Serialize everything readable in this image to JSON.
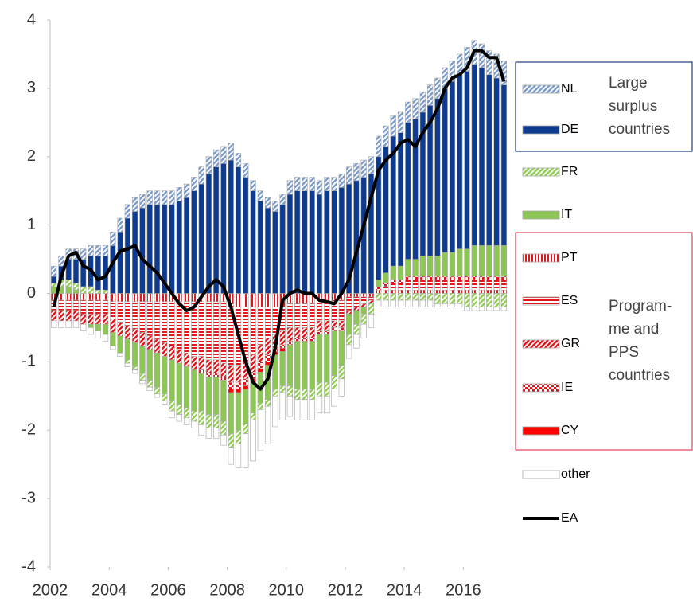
{
  "chart_data": {
    "type": "bar",
    "x": [
      2002,
      2002.25,
      2002.5,
      2002.75,
      2003,
      2003.25,
      2003.5,
      2003.75,
      2004,
      2004.25,
      2004.5,
      2004.75,
      2005,
      2005.25,
      2005.5,
      2005.75,
      2006,
      2006.25,
      2006.5,
      2006.75,
      2007,
      2007.25,
      2007.5,
      2007.75,
      2008,
      2008.25,
      2008.5,
      2008.75,
      2009,
      2009.25,
      2009.5,
      2009.75,
      2010,
      2010.25,
      2010.5,
      2010.75,
      2011,
      2011.25,
      2011.5,
      2011.75,
      2012,
      2012.25,
      2012.5,
      2012.75,
      2013,
      2013.25,
      2013.5,
      2013.75,
      2014,
      2014.25,
      2014.5,
      2014.75,
      2015,
      2015.25,
      2015.5,
      2015.75,
      2016,
      2016.25,
      2016.5,
      2016.75,
      2017,
      2017.25
    ],
    "xlim": [
      2002,
      2017.5
    ],
    "xticks": [
      2002,
      2004,
      2006,
      2008,
      2010,
      2012,
      2014,
      2016
    ],
    "ylim": [
      -4,
      4
    ],
    "yticks": [
      -4,
      -3,
      -2,
      -1,
      0,
      1,
      2,
      3,
      4
    ],
    "series": [
      {
        "name": "NL",
        "color": "#7c9ccc",
        "pattern": "diagonal",
        "values": [
          0.15,
          0.15,
          0.15,
          0.15,
          0.15,
          0.15,
          0.15,
          0.15,
          0.2,
          0.2,
          0.2,
          0.2,
          0.2,
          0.2,
          0.2,
          0.2,
          0.2,
          0.2,
          0.2,
          0.2,
          0.25,
          0.25,
          0.25,
          0.25,
          0.25,
          0.2,
          0.2,
          0.15,
          0.15,
          0.15,
          0.15,
          0.15,
          0.2,
          0.2,
          0.2,
          0.2,
          0.2,
          0.2,
          0.2,
          0.2,
          0.25,
          0.25,
          0.25,
          0.25,
          0.3,
          0.3,
          0.3,
          0.3,
          0.3,
          0.3,
          0.3,
          0.3,
          0.3,
          0.3,
          0.3,
          0.3,
          0.35,
          0.35,
          0.35,
          0.35,
          0.35,
          0.35
        ]
      },
      {
        "name": "DE",
        "color": "#0d3b8f",
        "pattern": "solid",
        "values": [
          0.1,
          0.2,
          0.3,
          0.35,
          0.4,
          0.45,
          0.5,
          0.5,
          0.7,
          0.9,
          1.1,
          1.2,
          1.25,
          1.3,
          1.3,
          1.3,
          1.3,
          1.35,
          1.4,
          1.5,
          1.6,
          1.75,
          1.85,
          1.9,
          1.95,
          1.85,
          1.7,
          1.5,
          1.35,
          1.25,
          1.2,
          1.3,
          1.45,
          1.5,
          1.5,
          1.5,
          1.45,
          1.5,
          1.5,
          1.55,
          1.6,
          1.65,
          1.7,
          1.75,
          1.8,
          1.85,
          1.9,
          1.95,
          2.0,
          2.05,
          2.1,
          2.2,
          2.3,
          2.4,
          2.5,
          2.55,
          2.6,
          2.65,
          2.6,
          2.5,
          2.45,
          2.35
        ]
      },
      {
        "name": "FR",
        "color": "#92d050",
        "pattern": "diagonal",
        "values": [
          0.05,
          0.1,
          0.1,
          0.1,
          0.1,
          0.1,
          0.05,
          0.05,
          0,
          0,
          -0.05,
          -0.05,
          -0.1,
          -0.1,
          -0.1,
          -0.1,
          -0.15,
          -0.15,
          -0.15,
          -0.15,
          -0.2,
          -0.2,
          -0.2,
          -0.2,
          -0.2,
          -0.2,
          -0.15,
          -0.1,
          -0.1,
          -0.1,
          -0.1,
          -0.1,
          -0.15,
          -0.15,
          -0.15,
          -0.15,
          -0.2,
          -0.2,
          -0.2,
          -0.2,
          -0.15,
          -0.15,
          -0.15,
          -0.15,
          -0.1,
          -0.1,
          -0.1,
          -0.1,
          -0.1,
          -0.1,
          -0.1,
          -0.1,
          -0.15,
          -0.15,
          -0.15,
          -0.15,
          -0.2,
          -0.2,
          -0.2,
          -0.2,
          -0.2,
          -0.2
        ]
      },
      {
        "name": "IT",
        "color": "#8cc653",
        "pattern": "solid",
        "values": [
          0.1,
          0.1,
          0.1,
          0.05,
          0,
          -0.05,
          -0.1,
          -0.15,
          -0.2,
          -0.25,
          -0.3,
          -0.35,
          -0.4,
          -0.45,
          -0.5,
          -0.55,
          -0.6,
          -0.6,
          -0.6,
          -0.6,
          -0.55,
          -0.55,
          -0.55,
          -0.6,
          -0.6,
          -0.55,
          -0.5,
          -0.45,
          -0.45,
          -0.5,
          -0.5,
          -0.5,
          -0.6,
          -0.7,
          -0.7,
          -0.7,
          -0.7,
          -0.7,
          -0.65,
          -0.5,
          -0.3,
          -0.2,
          -0.1,
          0,
          0.1,
          0.15,
          0.2,
          0.2,
          0.25,
          0.25,
          0.3,
          0.3,
          0.3,
          0.35,
          0.35,
          0.4,
          0.4,
          0.45,
          0.45,
          0.45,
          0.45,
          0.45
        ]
      },
      {
        "name": "PT",
        "color": "#e8141b",
        "pattern": "vertical",
        "values": [
          -0.1,
          -0.1,
          -0.1,
          -0.1,
          -0.1,
          -0.1,
          -0.1,
          -0.1,
          -0.12,
          -0.12,
          -0.12,
          -0.12,
          -0.12,
          -0.12,
          -0.12,
          -0.12,
          -0.12,
          -0.12,
          -0.12,
          -0.12,
          -0.12,
          -0.12,
          -0.12,
          -0.12,
          -0.15,
          -0.2,
          -0.2,
          -0.2,
          -0.2,
          -0.2,
          -0.2,
          -0.2,
          -0.15,
          -0.15,
          -0.15,
          -0.15,
          -0.1,
          -0.1,
          -0.1,
          -0.1,
          -0.05,
          -0.05,
          -0.05,
          -0.05,
          0.05,
          0.05,
          0.05,
          0.05,
          0.05,
          0.05,
          0.05,
          0.05,
          0.05,
          0.05,
          0.05,
          0.05,
          0.05,
          0.05,
          0.05,
          0.05,
          0.05,
          0.05
        ]
      },
      {
        "name": "ES",
        "color": "#e8141b",
        "pattern": "horizontal",
        "values": [
          -0.15,
          -0.15,
          -0.15,
          -0.15,
          -0.2,
          -0.2,
          -0.2,
          -0.2,
          -0.25,
          -0.3,
          -0.35,
          -0.4,
          -0.45,
          -0.5,
          -0.55,
          -0.6,
          -0.65,
          -0.7,
          -0.75,
          -0.8,
          -0.8,
          -0.85,
          -0.85,
          -0.9,
          -0.9,
          -0.85,
          -0.8,
          -0.7,
          -0.55,
          -0.45,
          -0.4,
          -0.35,
          -0.35,
          -0.35,
          -0.35,
          -0.35,
          -0.3,
          -0.3,
          -0.3,
          -0.3,
          -0.2,
          -0.15,
          -0.1,
          -0.05,
          0,
          0.05,
          0.1,
          0.1,
          0.15,
          0.15,
          0.15,
          0.15,
          0.15,
          0.15,
          0.15,
          0.15,
          0.15,
          0.15,
          0.15,
          0.15,
          0.15,
          0.15
        ]
      },
      {
        "name": "GR",
        "color": "#e8141b",
        "pattern": "diagonal",
        "values": [
          -0.15,
          -0.15,
          -0.15,
          -0.15,
          -0.15,
          -0.15,
          -0.15,
          -0.15,
          -0.2,
          -0.2,
          -0.2,
          -0.2,
          -0.2,
          -0.2,
          -0.2,
          -0.2,
          -0.2,
          -0.2,
          -0.2,
          -0.2,
          -0.2,
          -0.2,
          -0.2,
          -0.2,
          -0.25,
          -0.25,
          -0.25,
          -0.25,
          -0.25,
          -0.25,
          -0.2,
          -0.2,
          -0.2,
          -0.15,
          -0.15,
          -0.15,
          -0.15,
          -0.15,
          -0.1,
          -0.1,
          -0.05,
          -0.05,
          -0.05,
          -0.05,
          0,
          0,
          0,
          0,
          0,
          0,
          0,
          0,
          0,
          0,
          0,
          0,
          0,
          0,
          0,
          0,
          0,
          0
        ]
      },
      {
        "name": "IE",
        "color": "#e8141b",
        "pattern": "dots",
        "values": [
          0,
          0,
          0,
          0,
          0,
          0,
          0,
          0,
          0,
          0,
          0,
          0,
          0,
          0,
          0,
          0,
          0,
          0,
          0,
          0,
          -0.05,
          -0.05,
          -0.05,
          -0.05,
          -0.1,
          -0.1,
          -0.1,
          -0.1,
          -0.1,
          -0.1,
          -0.05,
          -0.05,
          -0.05,
          -0.05,
          -0.05,
          -0.05,
          -0.05,
          -0.05,
          -0.05,
          -0.05,
          0,
          0,
          0,
          0,
          0.05,
          0.05,
          0.05,
          0.05,
          0.05,
          0.05,
          0.05,
          0.05,
          0.05,
          0.05,
          0.05,
          0.05,
          0.05,
          0.05,
          0.05,
          0.05,
          0.05,
          0.05
        ]
      },
      {
        "name": "CY",
        "color": "#ff0000",
        "pattern": "solid",
        "values": [
          0,
          0,
          0,
          0,
          0,
          0,
          0,
          0,
          0,
          0,
          0,
          0,
          0,
          0,
          0,
          0,
          0,
          0,
          0,
          0,
          0,
          0,
          0,
          0,
          -0.05,
          -0.05,
          -0.05,
          -0.05,
          -0.05,
          -0.05,
          -0.05,
          -0.05,
          0,
          0,
          0,
          0,
          0,
          0,
          0,
          0,
          0,
          0,
          0,
          0,
          0,
          0,
          0,
          0,
          0,
          0,
          0,
          0,
          0,
          0,
          0,
          0,
          0,
          0,
          0,
          0,
          0,
          0
        ]
      },
      {
        "name": "other",
        "color": "#a6a6a6",
        "pattern": "outline",
        "values": [
          -0.1,
          -0.1,
          -0.1,
          -0.1,
          -0.1,
          -0.1,
          -0.1,
          -0.1,
          -0.05,
          -0.05,
          -0.05,
          -0.05,
          -0.05,
          -0.05,
          -0.05,
          -0.05,
          -0.1,
          -0.1,
          -0.1,
          -0.1,
          -0.15,
          -0.15,
          -0.15,
          -0.15,
          -0.25,
          -0.35,
          -0.5,
          -0.6,
          -0.6,
          -0.55,
          -0.45,
          -0.4,
          -0.3,
          -0.3,
          -0.3,
          -0.3,
          -0.25,
          -0.25,
          -0.25,
          -0.25,
          -0.2,
          -0.2,
          -0.2,
          -0.2,
          -0.1,
          -0.1,
          -0.1,
          -0.1,
          -0.1,
          -0.1,
          -0.1,
          -0.1,
          -0.05,
          -0.05,
          -0.05,
          -0.05,
          -0.05,
          -0.05,
          -0.05,
          -0.05,
          -0.05,
          -0.05
        ]
      },
      {
        "name": "EA",
        "color": "#000000",
        "type": "line",
        "values": [
          -0.2,
          0.25,
          0.55,
          0.6,
          0.4,
          0.35,
          0.2,
          0.25,
          0.45,
          0.62,
          0.65,
          0.7,
          0.5,
          0.4,
          0.3,
          0.15,
          0,
          -0.15,
          -0.25,
          -0.2,
          -0.05,
          0.1,
          0.2,
          0.1,
          -0.2,
          -0.6,
          -1.0,
          -1.3,
          -1.4,
          -1.25,
          -0.8,
          -0.1,
          0,
          0.05,
          0,
          0,
          -0.1,
          -0.12,
          -0.15,
          0,
          0.2,
          0.6,
          1.0,
          1.4,
          1.8,
          1.95,
          2.05,
          2.2,
          2.25,
          2.15,
          2.35,
          2.5,
          2.7,
          3.0,
          3.15,
          3.2,
          3.3,
          3.55,
          3.55,
          3.45,
          3.45,
          3.1
        ]
      }
    ],
    "annotations": [
      [
        "Large",
        "surplus",
        "countries"
      ],
      [
        "Program-",
        "me and",
        "PPS",
        "countries"
      ]
    ]
  }
}
